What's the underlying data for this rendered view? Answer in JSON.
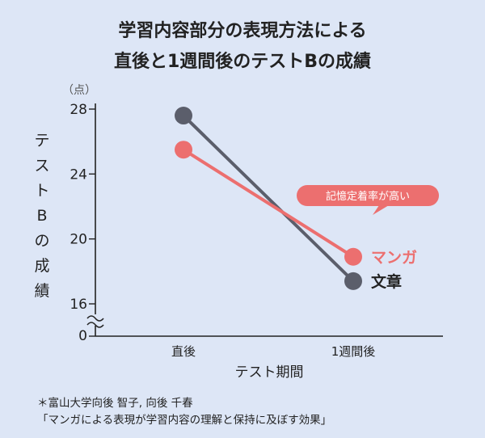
{
  "title_lines": [
    "学習内容部分の表現方法による",
    "直後と1週間後のテストBの成績"
  ],
  "chart_data": {
    "type": "line",
    "categories": [
      "直後",
      "1週間後"
    ],
    "series": [
      {
        "name": "文章",
        "values": [
          27.6,
          17.4
        ],
        "color": "#5b5e6b"
      },
      {
        "name": "マンガ",
        "values": [
          25.5,
          18.9
        ],
        "color": "#ec6f6f"
      }
    ],
    "ylabel": "テストBの成績",
    "ylabel_unit": "（点）",
    "xlabel": "テスト期間",
    "yticks": [
      28,
      24,
      20,
      16
    ],
    "zero_label": "0",
    "axis_break": true,
    "ylim": [
      16,
      28
    ],
    "annotation": "記憶定着率が高い",
    "annotation_color": "#ec6f6f"
  },
  "credits": [
    "＊富山大学向後 智子, 向後 千春",
    "「マンガによる表現が学習内容の理解と保持に及ぼす効果」"
  ]
}
